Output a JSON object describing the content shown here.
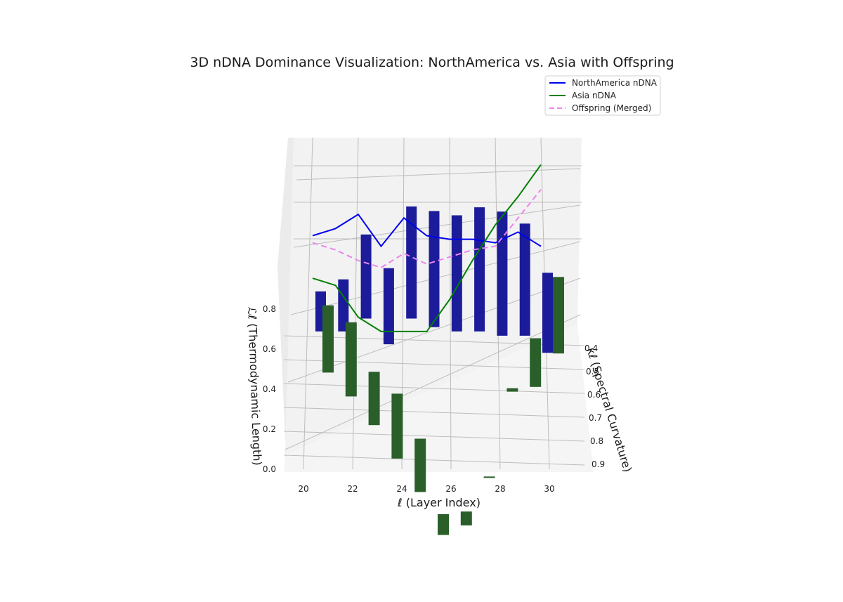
{
  "chart_data": {
    "type": "bar",
    "title": "3D nDNA Dominance Visualization: NorthAmerica vs. Asia with Offspring",
    "xlabel": "ℓ (Layer Index)",
    "ylabel": "κℓ (Spectral Curvature)",
    "zlabel": "ℒℓ (Thermodynamic Length)",
    "x_ticks": [
      "20",
      "22",
      "24",
      "26",
      "28",
      "30"
    ],
    "y_ticks": [
      "0.4",
      "0.5",
      "0.6",
      "0.7",
      "0.8",
      "0.9"
    ],
    "z_ticks": [
      "0.0",
      "0.2",
      "0.4",
      "0.6",
      "0.8"
    ],
    "xlim": [
      19.5,
      30.5
    ],
    "ylim": [
      0.35,
      0.9
    ],
    "zlim": [
      0,
      0.9
    ],
    "layers": [
      20,
      21,
      22,
      23,
      24,
      25,
      26,
      27,
      28,
      29,
      30
    ],
    "series": [
      {
        "name": "NorthAmerica nDNA",
        "color": "#0000ee",
        "line_style": "solid",
        "kappa": [
          0.38,
          0.38,
          0.37,
          0.38,
          0.37,
          0.38,
          0.38,
          0.38,
          0.38,
          0.38,
          0.38
        ],
        "length": [
          0.9,
          0.92,
          0.96,
          0.87,
          0.95,
          0.9,
          0.89,
          0.89,
          0.88,
          0.91,
          0.87
        ]
      },
      {
        "name": "Asia nDNA",
        "color": "#008000",
        "line_style": "solid",
        "kappa": [
          0.41,
          0.43,
          0.47,
          0.51,
          0.55,
          0.58,
          0.58,
          0.56,
          0.52,
          0.47,
          0.41
        ],
        "length": [
          0.78,
          0.76,
          0.67,
          0.63,
          0.63,
          0.63,
          0.72,
          0.83,
          0.93,
          1.01,
          1.1
        ]
      },
      {
        "name": "Offspring (Merged)",
        "color": "#ee82ee",
        "line_style": "dashed",
        "kappa": [
          0.39,
          0.4,
          0.42,
          0.44,
          0.46,
          0.48,
          0.48,
          0.47,
          0.45,
          0.42,
          0.39
        ],
        "length": [
          0.88,
          0.86,
          0.83,
          0.81,
          0.85,
          0.82,
          0.84,
          0.86,
          0.87,
          0.95,
          1.03
        ]
      }
    ],
    "bars": [
      {
        "name": "NorthAmerica",
        "color": "#1c1c9a",
        "kappa": 0.38,
        "bottom": [
          0.62,
          0.62,
          0.65,
          0.59,
          0.65,
          0.63,
          0.62,
          0.62,
          0.61,
          0.61,
          0.57
        ],
        "height": [
          0.1,
          0.13,
          0.21,
          0.19,
          0.28,
          0.29,
          0.29,
          0.31,
          0.31,
          0.28,
          0.2
        ]
      },
      {
        "name": "Asia",
        "color": "#2a5f2a",
        "kappa": [
          0.41,
          0.43,
          0.47,
          0.51,
          0.55,
          0.58,
          0.58,
          0.56,
          0.52,
          0.47,
          0.41
        ],
        "bottom": [
          0.47,
          0.42,
          0.36,
          0.29,
          0.22,
          0.13,
          0.15,
          0.25,
          0.43,
          0.44,
          0.51
        ],
        "height": [
          0.29,
          0.32,
          0.23,
          0.28,
          0.23,
          0.09,
          0.06,
          0.005,
          0.015,
          0.21,
          0.33
        ]
      }
    ],
    "legend": {
      "position": "top-right",
      "entries": [
        "NorthAmerica nDNA",
        "Asia nDNA",
        "Offspring (Merged)"
      ]
    },
    "grid": true
  }
}
